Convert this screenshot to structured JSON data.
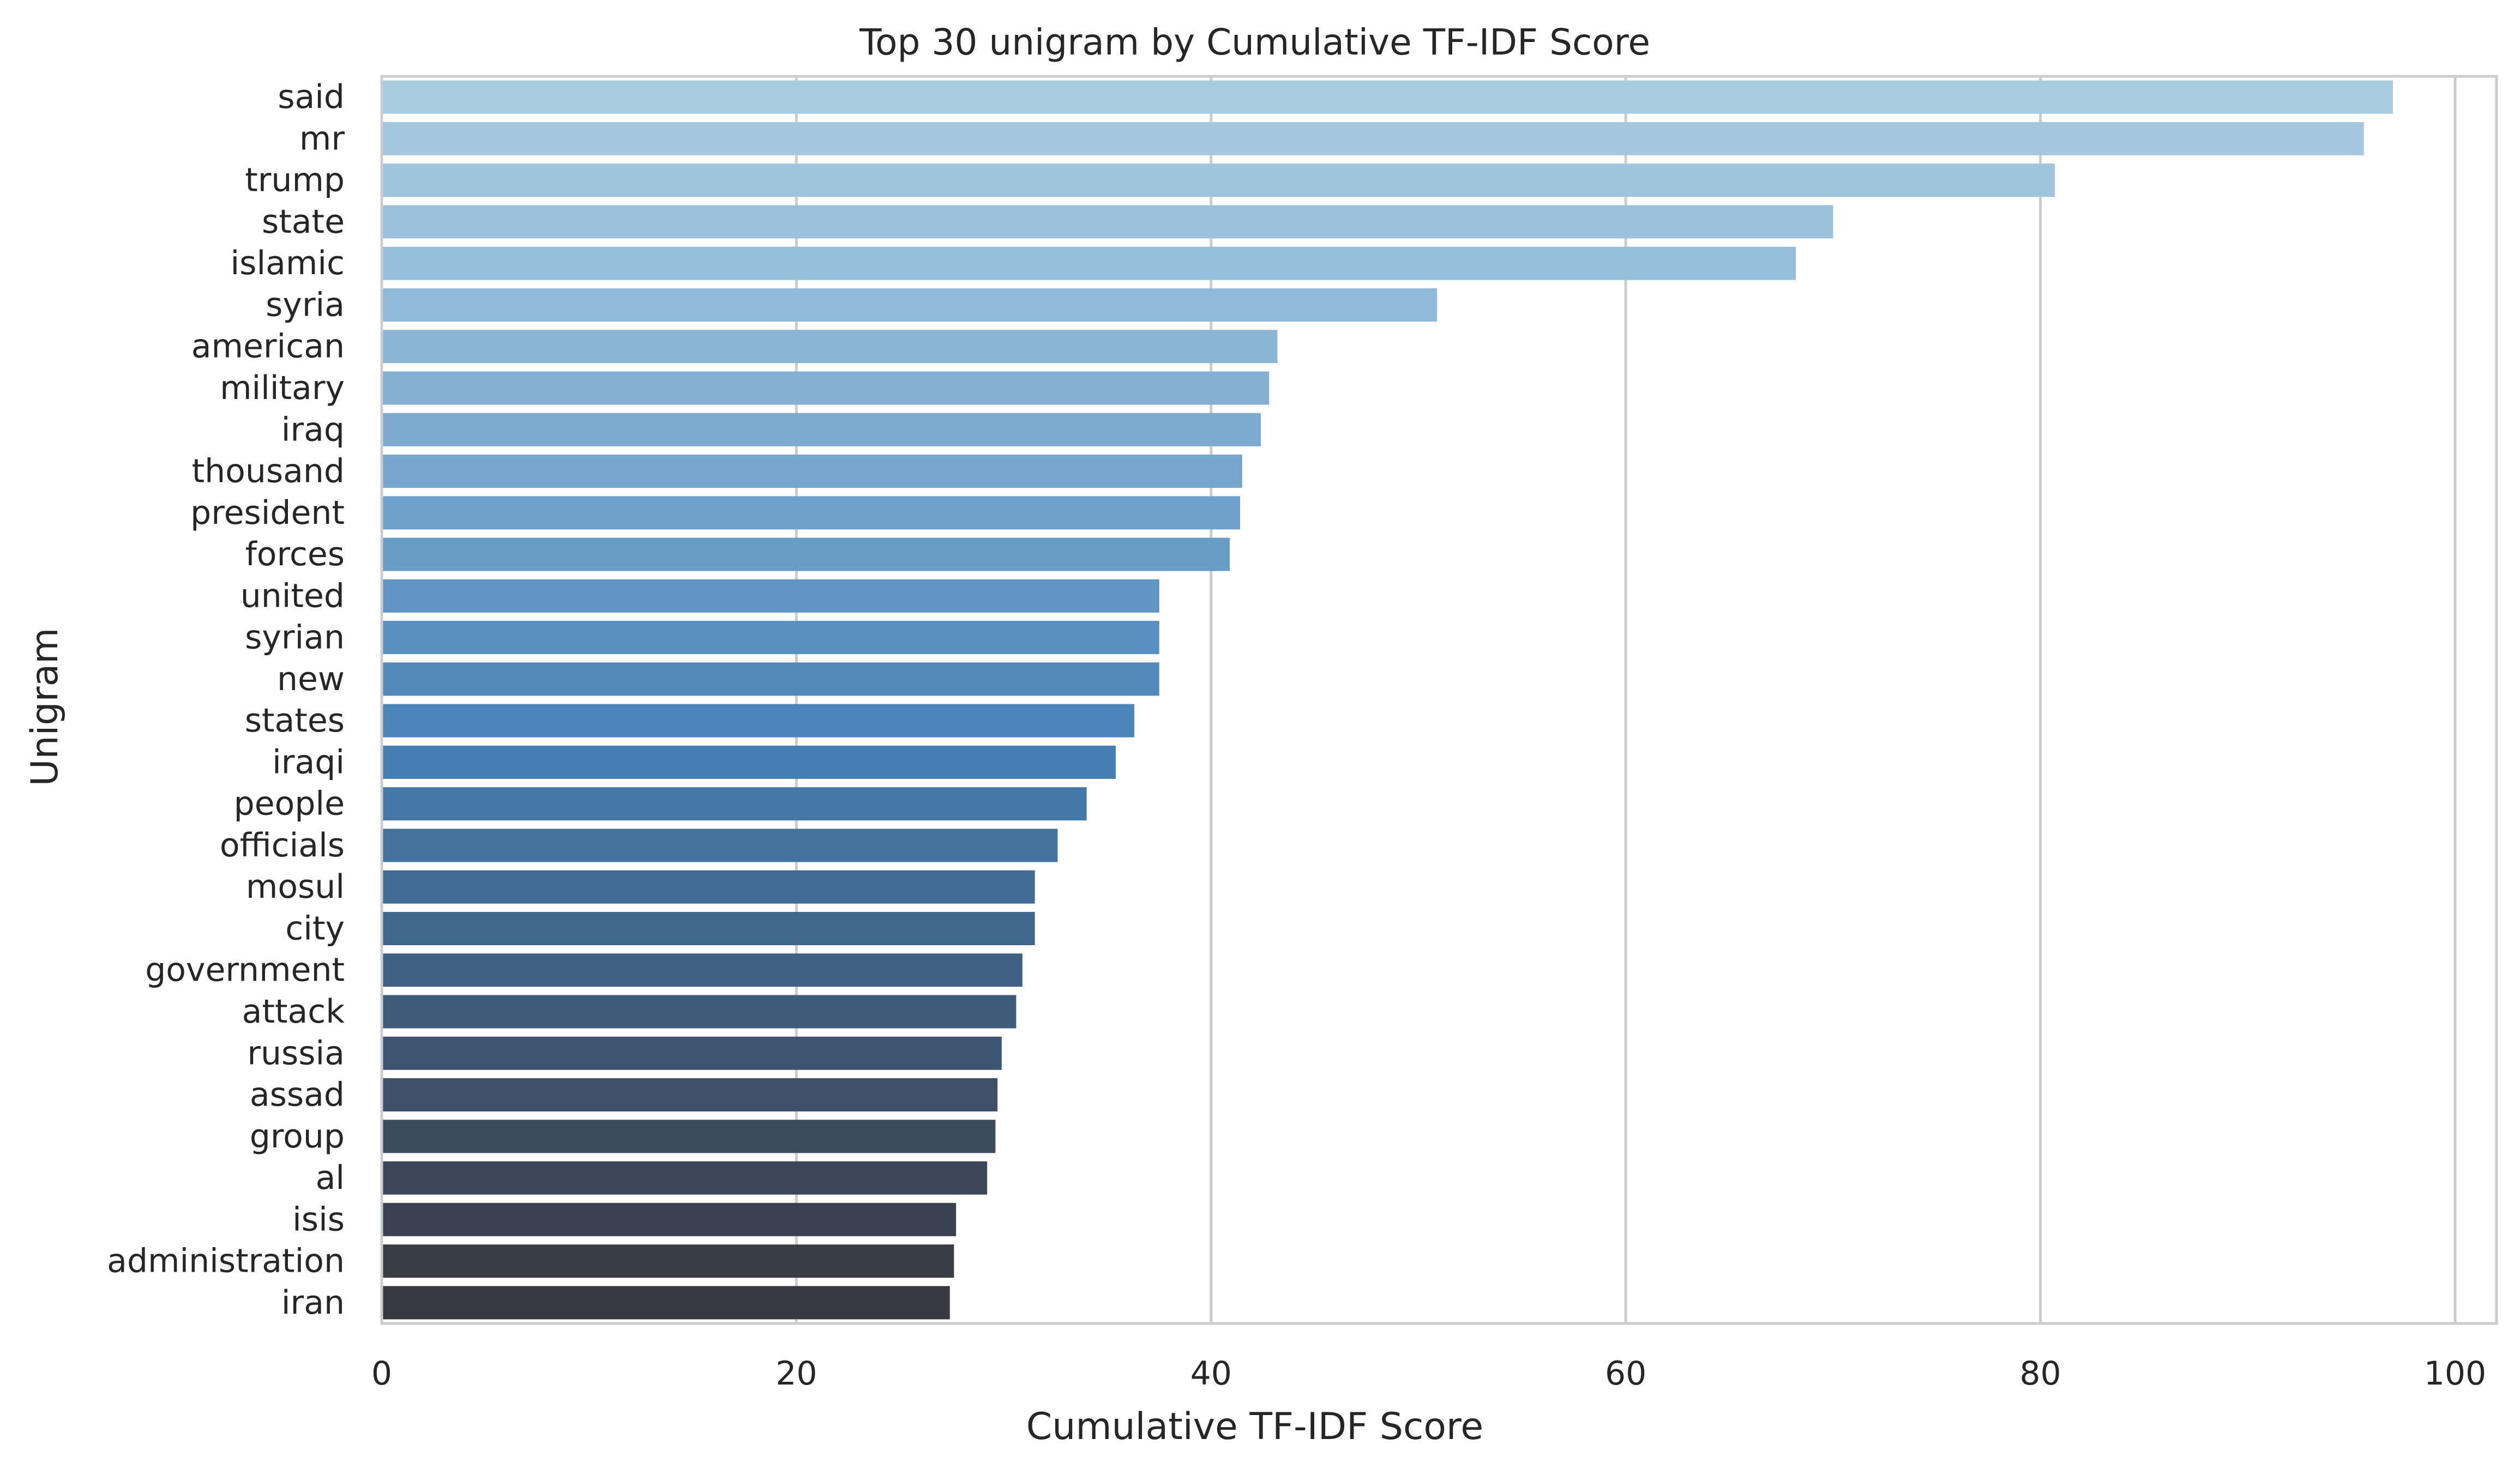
{
  "chart_data": {
    "type": "bar",
    "orientation": "horizontal",
    "title": "Top 30 unigram by Cumulative TF-IDF Score",
    "xlabel": "Cumulative TF-IDF Score",
    "ylabel": "Unigram",
    "xlim": [
      0,
      102
    ],
    "xticks": [
      0,
      20,
      40,
      60,
      80,
      100
    ],
    "grid": true,
    "legend": "none",
    "categories": [
      "said",
      "mr",
      "trump",
      "state",
      "islamic",
      "syria",
      "american",
      "military",
      "iraq",
      "thousand",
      "president",
      "forces",
      "united",
      "syrian",
      "new",
      "states",
      "iraqi",
      "people",
      "officials",
      "mosul",
      "city",
      "government",
      "attack",
      "russia",
      "assad",
      "group",
      "al",
      "isis",
      "administration",
      "iran"
    ],
    "values": [
      97.0,
      95.6,
      80.7,
      70.0,
      68.2,
      50.9,
      43.2,
      42.8,
      42.4,
      41.5,
      41.4,
      40.9,
      37.5,
      37.5,
      37.5,
      36.3,
      35.4,
      34.0,
      32.6,
      31.5,
      31.5,
      30.9,
      30.6,
      29.9,
      29.7,
      29.6,
      29.2,
      27.7,
      27.6,
      27.4
    ],
    "colors": [
      "#a8cbe0",
      "#a4c8df",
      "#9fc5dd",
      "#9bc1dc",
      "#96bedb",
      "#91bad8",
      "#8ab5d5",
      "#84b0d3",
      "#7dabd0",
      "#76a6cd",
      "#6fa1cb",
      "#689dc8",
      "#6196c4",
      "#5a90c0",
      "#528abc",
      "#4a84b8",
      "#457eb2",
      "#4478a8",
      "#43729f",
      "#426c96",
      "#41668c",
      "#406083",
      "#3f5b7a",
      "#3e5571",
      "#3d5068",
      "#3c4b60",
      "#3b4658",
      "#3a4250",
      "#383d47",
      "#363a3f"
    ]
  }
}
